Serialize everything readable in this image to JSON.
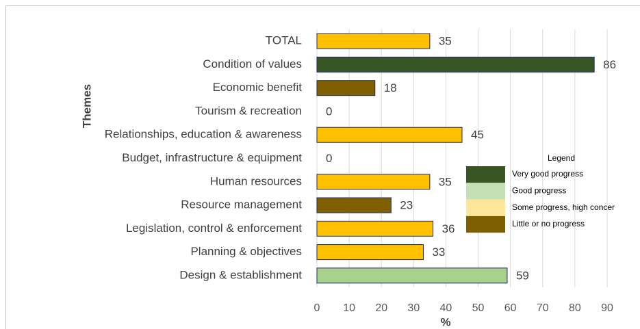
{
  "chart_data": {
    "type": "bar",
    "orientation": "horizontal",
    "categories": [
      "TOTAL",
      "Condition of values",
      "Economic benefit",
      "Tourism & recreation",
      "Relationships, education & awareness",
      "Budget, infrastructure & equipment",
      "Human resources",
      "Resource management",
      "Legislation, control & enforcement",
      "Planning & objectives",
      "Design & establishment"
    ],
    "values": [
      35,
      86,
      18,
      0,
      45,
      0,
      35,
      23,
      36,
      33,
      59
    ],
    "colors": [
      "#ffc000",
      "#375623",
      "#7f6000",
      "#ffc000",
      "#ffc000",
      "#ffc000",
      "#ffc000",
      "#7f6000",
      "#ffc000",
      "#ffc000",
      "#a9d18e"
    ],
    "x_label": "%",
    "y_label": "Themes",
    "xlim": [
      0,
      90
    ],
    "xticks": [
      0,
      10,
      20,
      30,
      40,
      50,
      60,
      70,
      80,
      90
    ],
    "grid": true,
    "legend": {
      "title": "Legend",
      "entries": [
        {
          "label": "Very good progress",
          "color": "#375623"
        },
        {
          "label": "Good progress",
          "color": "#c5e0b4"
        },
        {
          "label": "Some progress, high concer",
          "color": "#ffe699"
        },
        {
          "label": "Little or no progress",
          "color": "#7f6000"
        }
      ]
    }
  }
}
